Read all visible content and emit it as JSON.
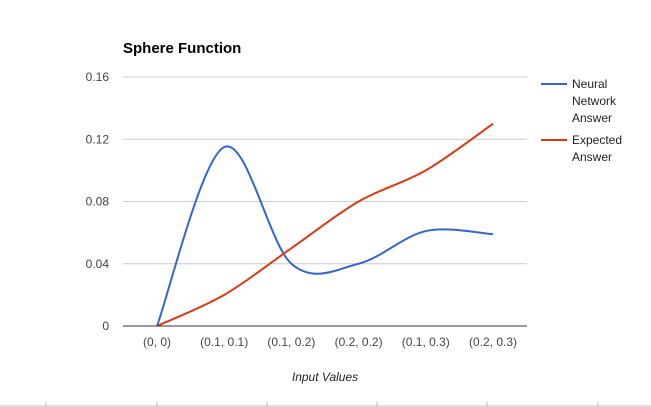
{
  "chart_data": {
    "type": "line",
    "title": "Sphere Function",
    "xlabel": "Input Values",
    "ylabel": "",
    "categories": [
      "(0, 0)",
      "(0.1, 0.1)",
      "(0.1, 0.2)",
      "(0.2, 0.2)",
      "(0.1, 0.3)",
      "(0.2, 0.3)"
    ],
    "ylim": [
      0,
      0.16
    ],
    "yticks": [
      0,
      0.04,
      0.08,
      0.12,
      0.16
    ],
    "ytick_labels": [
      "0",
      "0.04",
      "0.08",
      "0.12",
      "0.16"
    ],
    "series": [
      {
        "name": "Neural Network Answer",
        "name_lines": [
          "Neural",
          "Network",
          "Answer"
        ],
        "color": "#3366cc",
        "values": [
          0,
          0.115,
          0.04,
          0.04,
          0.061,
          0.059
        ]
      },
      {
        "name": "Expected Answer",
        "name_lines": [
          "Expected",
          "Answer"
        ],
        "color": "#dc3912",
        "values": [
          0,
          0.02,
          0.05,
          0.08,
          0.1,
          0.13
        ]
      }
    ],
    "grid": true,
    "legend_position": "right",
    "smooth": true
  }
}
